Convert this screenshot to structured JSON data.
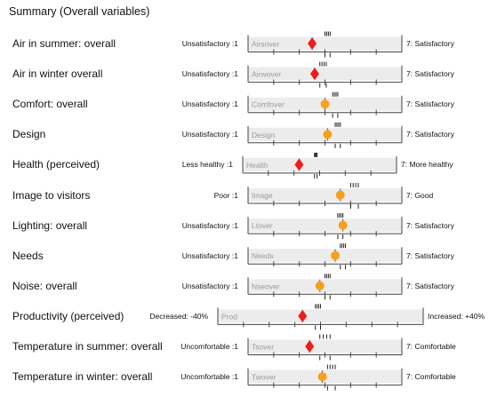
{
  "page": {
    "title": "Summary (Overall variables)"
  },
  "colors": {
    "good": "#f7a01e",
    "bad": "#ee1c1c",
    "bar": "#ececec",
    "frame": "#444444"
  },
  "chart_data": {
    "type": "scatter",
    "title": "Summary (Overall variables)",
    "rows": [
      {
        "label": "Air in summer: overall",
        "code": "Airsover",
        "left": "Unsatisfactory :1",
        "right": "7: Satisfactory",
        "scale": [
          1,
          7
        ],
        "value": 3.5,
        "marker": "diamond",
        "color": "red",
        "bench": [
          4.0,
          4.2
        ]
      },
      {
        "label": "Air in winter overall",
        "code": "Airwover",
        "left": "Unsatisfactory :1",
        "right": "7: Satisfactory",
        "scale": [
          1,
          7
        ],
        "value": 3.6,
        "marker": "diamond",
        "color": "red",
        "bench": [
          3.8,
          4.05
        ]
      },
      {
        "label": "Comfort: overall",
        "code": "Comfover",
        "left": "Unsatisfactory :1",
        "right": "7: Satisfactory",
        "scale": [
          1,
          7
        ],
        "value": 4.0,
        "marker": "circle",
        "color": "orange",
        "bench": [
          4.3,
          4.5
        ]
      },
      {
        "label": "Design",
        "code": "Design",
        "left": "Unsatisfactory :1",
        "right": "7: Satisfactory",
        "scale": [
          1,
          7
        ],
        "value": 4.1,
        "marker": "circle",
        "color": "orange",
        "bench": [
          4.4,
          4.6
        ]
      },
      {
        "label": "Health (perceived)",
        "code": "Health",
        "left": "Less healthy :1",
        "right": "7: More healthy",
        "scale": [
          1,
          7
        ],
        "value": 3.2,
        "marker": "diamond",
        "color": "red",
        "bench": [
          3.8,
          3.9
        ]
      },
      {
        "label": "Image to visitors",
        "code": "Image",
        "left": "Poor :1",
        "right": "7: Good",
        "scale": [
          1,
          7
        ],
        "value": 4.6,
        "marker": "circle",
        "color": "orange",
        "bench": [
          5.0,
          5.3
        ]
      },
      {
        "label": "Lighting: overall",
        "code": "Ltover",
        "left": "Unsatisfactory :1",
        "right": "7: Satisfactory",
        "scale": [
          1,
          7
        ],
        "value": 4.7,
        "marker": "circle",
        "color": "orange",
        "bench": [
          4.5,
          4.7
        ]
      },
      {
        "label": "Needs",
        "code": "Needs",
        "left": "Unsatisfactory :1",
        "right": "7: Satisfactory",
        "scale": [
          1,
          7
        ],
        "value": 4.4,
        "marker": "circle",
        "color": "orange",
        "bench": [
          4.6,
          4.8
        ]
      },
      {
        "label": "Noise: overall",
        "code": "Nseover",
        "left": "Unsatisfactory :1",
        "right": "7: Satisfactory",
        "scale": [
          1,
          7
        ],
        "value": 3.8,
        "marker": "circle",
        "color": "orange",
        "bench": [
          4.0,
          4.2
        ]
      },
      {
        "label": "Productivity (perceived)",
        "code": "Prod",
        "left": "Decreased: -40%",
        "right": "Increased: +40%",
        "scale": [
          -40,
          40
        ],
        "value": -7,
        "marker": "diamond",
        "color": "red",
        "bench": [
          -2,
          0
        ]
      },
      {
        "label": "Temperature in summer: overall",
        "code": "Tsover",
        "left": "Uncomfortable :1",
        "right": "7: Comfortable",
        "scale": [
          1,
          7
        ],
        "value": 3.4,
        "marker": "diamond",
        "color": "red",
        "bench": [
          3.8,
          4.2
        ]
      },
      {
        "label": "Temperature in winter: overall",
        "code": "Twover",
        "left": "Uncomfortable :1",
        "right": "7: Comfortable",
        "scale": [
          1,
          7
        ],
        "value": 3.9,
        "marker": "circle",
        "color": "orange",
        "bench": [
          4.1,
          4.4
        ]
      }
    ]
  }
}
